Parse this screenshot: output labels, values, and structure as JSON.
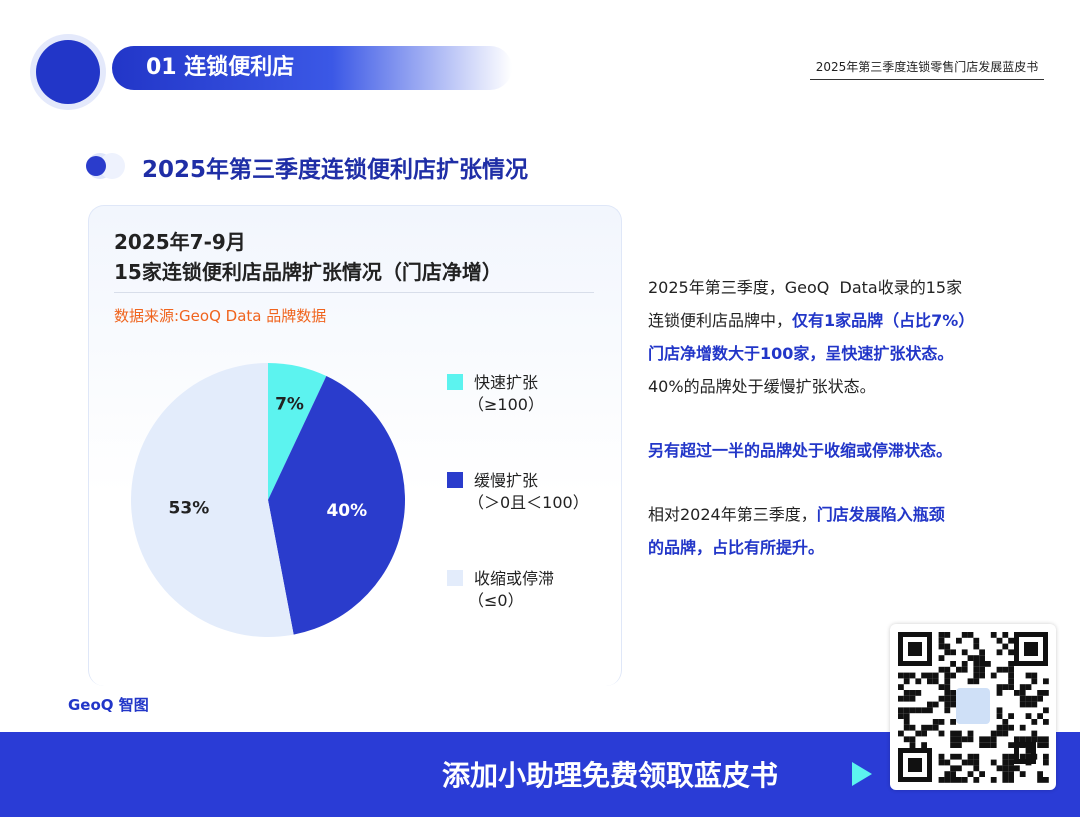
{
  "header": {
    "section": "01 连锁便利店",
    "report_title": "2025年第三季度连锁零售门店发展蓝皮书"
  },
  "heading": "2025年第三季度连锁便利店扩张情况",
  "card": {
    "title_line1": "2025年7-9月",
    "title_line2": "15家连锁便利店品牌扩张情况（门店净增）",
    "source": "数据来源:GeoQ Data 品牌数据"
  },
  "chart_data": {
    "type": "pie",
    "categories": [
      "快速扩张",
      "缓慢扩张",
      "收缩或停滞"
    ],
    "category_notes": [
      "（≥100）",
      "（＞0且＜100）",
      "（≤0）"
    ],
    "values": [
      7,
      40,
      53
    ],
    "value_labels": [
      "7%",
      "40%",
      "53%"
    ],
    "colors": [
      "#5cf3ef",
      "#2a3ccc",
      "#e3ecfb"
    ],
    "label_colors": [
      "#222222",
      "#ffffff",
      "#222222"
    ]
  },
  "text": {
    "paragraphs": [
      {
        "lines": [
          [
            {
              "text": "2025年第三季度，GeoQ  Data收录的15家",
              "emphasis": false
            }
          ],
          [
            {
              "text": "连锁便利店品牌中，",
              "emphasis": false
            },
            {
              "text": "仅有1家品牌（占比7%）",
              "emphasis": true
            }
          ],
          [
            {
              "text": "门店净增数大于100家，呈快速扩张状态。",
              "emphasis": true
            }
          ],
          [
            {
              "text": "40%的品牌处于缓慢扩张状态。",
              "emphasis": false
            }
          ]
        ]
      },
      {
        "lines": [
          [
            {
              "text": "另有超过一半的品牌处于收缩或停滞状态。",
              "emphasis": true
            }
          ]
        ]
      },
      {
        "lines": [
          [
            {
              "text": "相对2024年第三季度，",
              "emphasis": false
            },
            {
              "text": "门店发展陷入瓶颈",
              "emphasis": true
            }
          ],
          [
            {
              "text": "的品牌，占比有所提升。",
              "emphasis": true
            }
          ]
        ]
      }
    ]
  },
  "logo": "GeoQ 智图",
  "banner": "添加小助理免费领取蓝皮书"
}
